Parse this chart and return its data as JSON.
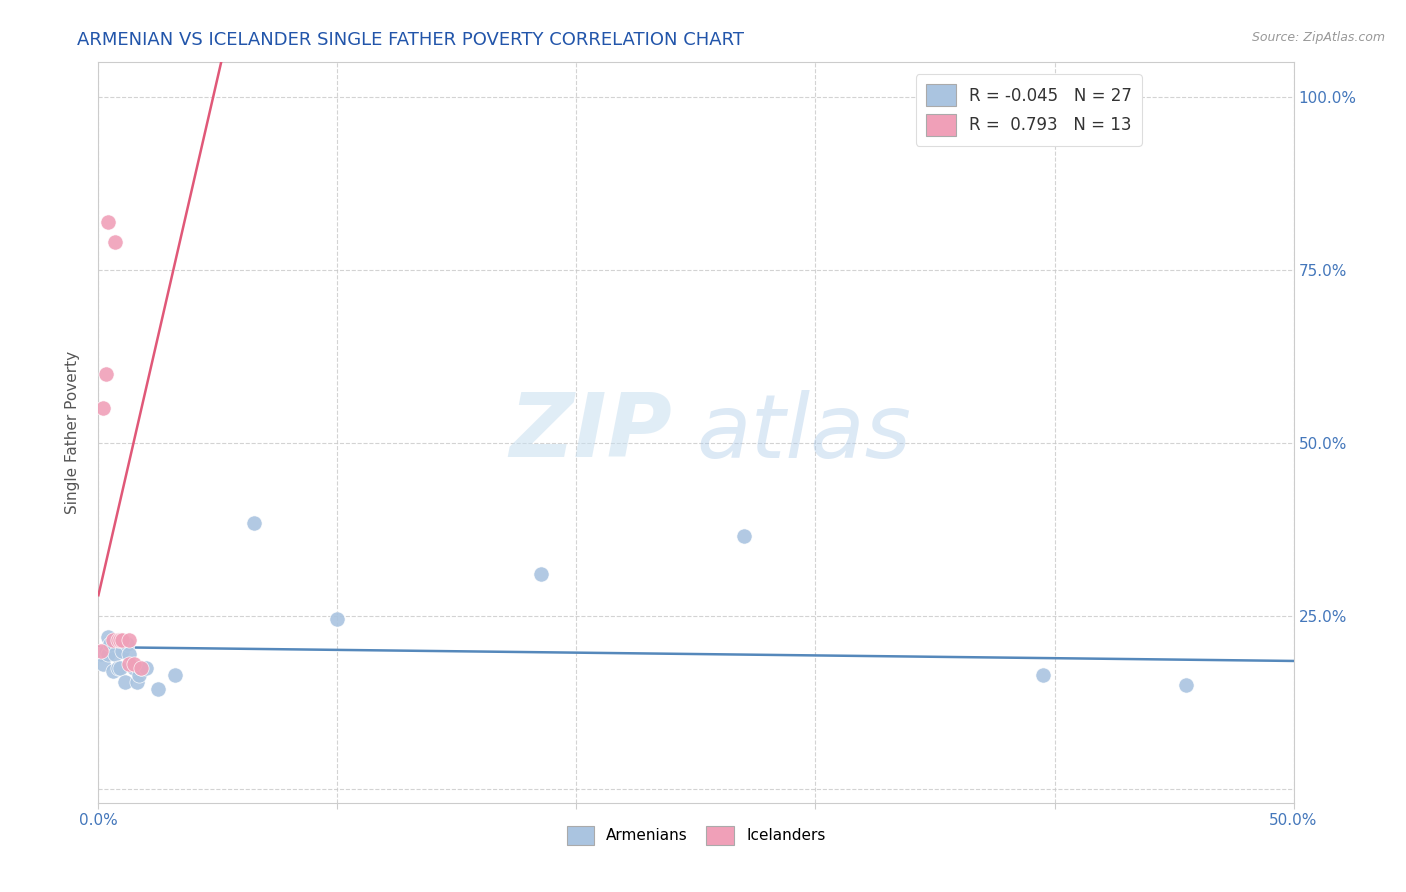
{
  "title": "ARMENIAN VS ICELANDER SINGLE FATHER POVERTY CORRELATION CHART",
  "source": "Source: ZipAtlas.com",
  "ylabel": "Single Father Poverty",
  "xlim": [
    0.0,
    0.5
  ],
  "ylim": [
    -0.02,
    1.05
  ],
  "armenian_R": -0.045,
  "armenian_N": 27,
  "icelander_R": 0.793,
  "icelander_N": 13,
  "armenian_color": "#aac4e0",
  "icelander_color": "#f0a0b8",
  "armenian_line_color": "#5588bb",
  "icelander_line_color": "#e05878",
  "background_color": "#ffffff",
  "grid_color": "#c8c8c8",
  "watermark_zip": "ZIP",
  "watermark_atlas": "atlas",
  "armenian_x": [
    0.001,
    0.002,
    0.003,
    0.004,
    0.004,
    0.005,
    0.006,
    0.007,
    0.008,
    0.009,
    0.01,
    0.011,
    0.012,
    0.013,
    0.015,
    0.016,
    0.017,
    0.018,
    0.02,
    0.025,
    0.032,
    0.065,
    0.1,
    0.185,
    0.27,
    0.395,
    0.455
  ],
  "armenian_y": [
    0.195,
    0.18,
    0.2,
    0.22,
    0.195,
    0.21,
    0.17,
    0.195,
    0.175,
    0.175,
    0.2,
    0.155,
    0.21,
    0.195,
    0.175,
    0.155,
    0.165,
    0.175,
    0.175,
    0.145,
    0.165,
    0.385,
    0.245,
    0.31,
    0.365,
    0.165,
    0.15
  ],
  "icelander_x": [
    0.001,
    0.002,
    0.003,
    0.004,
    0.006,
    0.007,
    0.008,
    0.009,
    0.01,
    0.013,
    0.013,
    0.015,
    0.018
  ],
  "icelander_y": [
    0.2,
    0.55,
    0.6,
    0.82,
    0.215,
    0.79,
    0.215,
    0.215,
    0.215,
    0.215,
    0.18,
    0.18,
    0.175
  ],
  "xticks": [
    0.0,
    0.1,
    0.2,
    0.3,
    0.4,
    0.5
  ],
  "yticks": [
    0.0,
    0.25,
    0.5,
    0.75,
    1.0
  ]
}
